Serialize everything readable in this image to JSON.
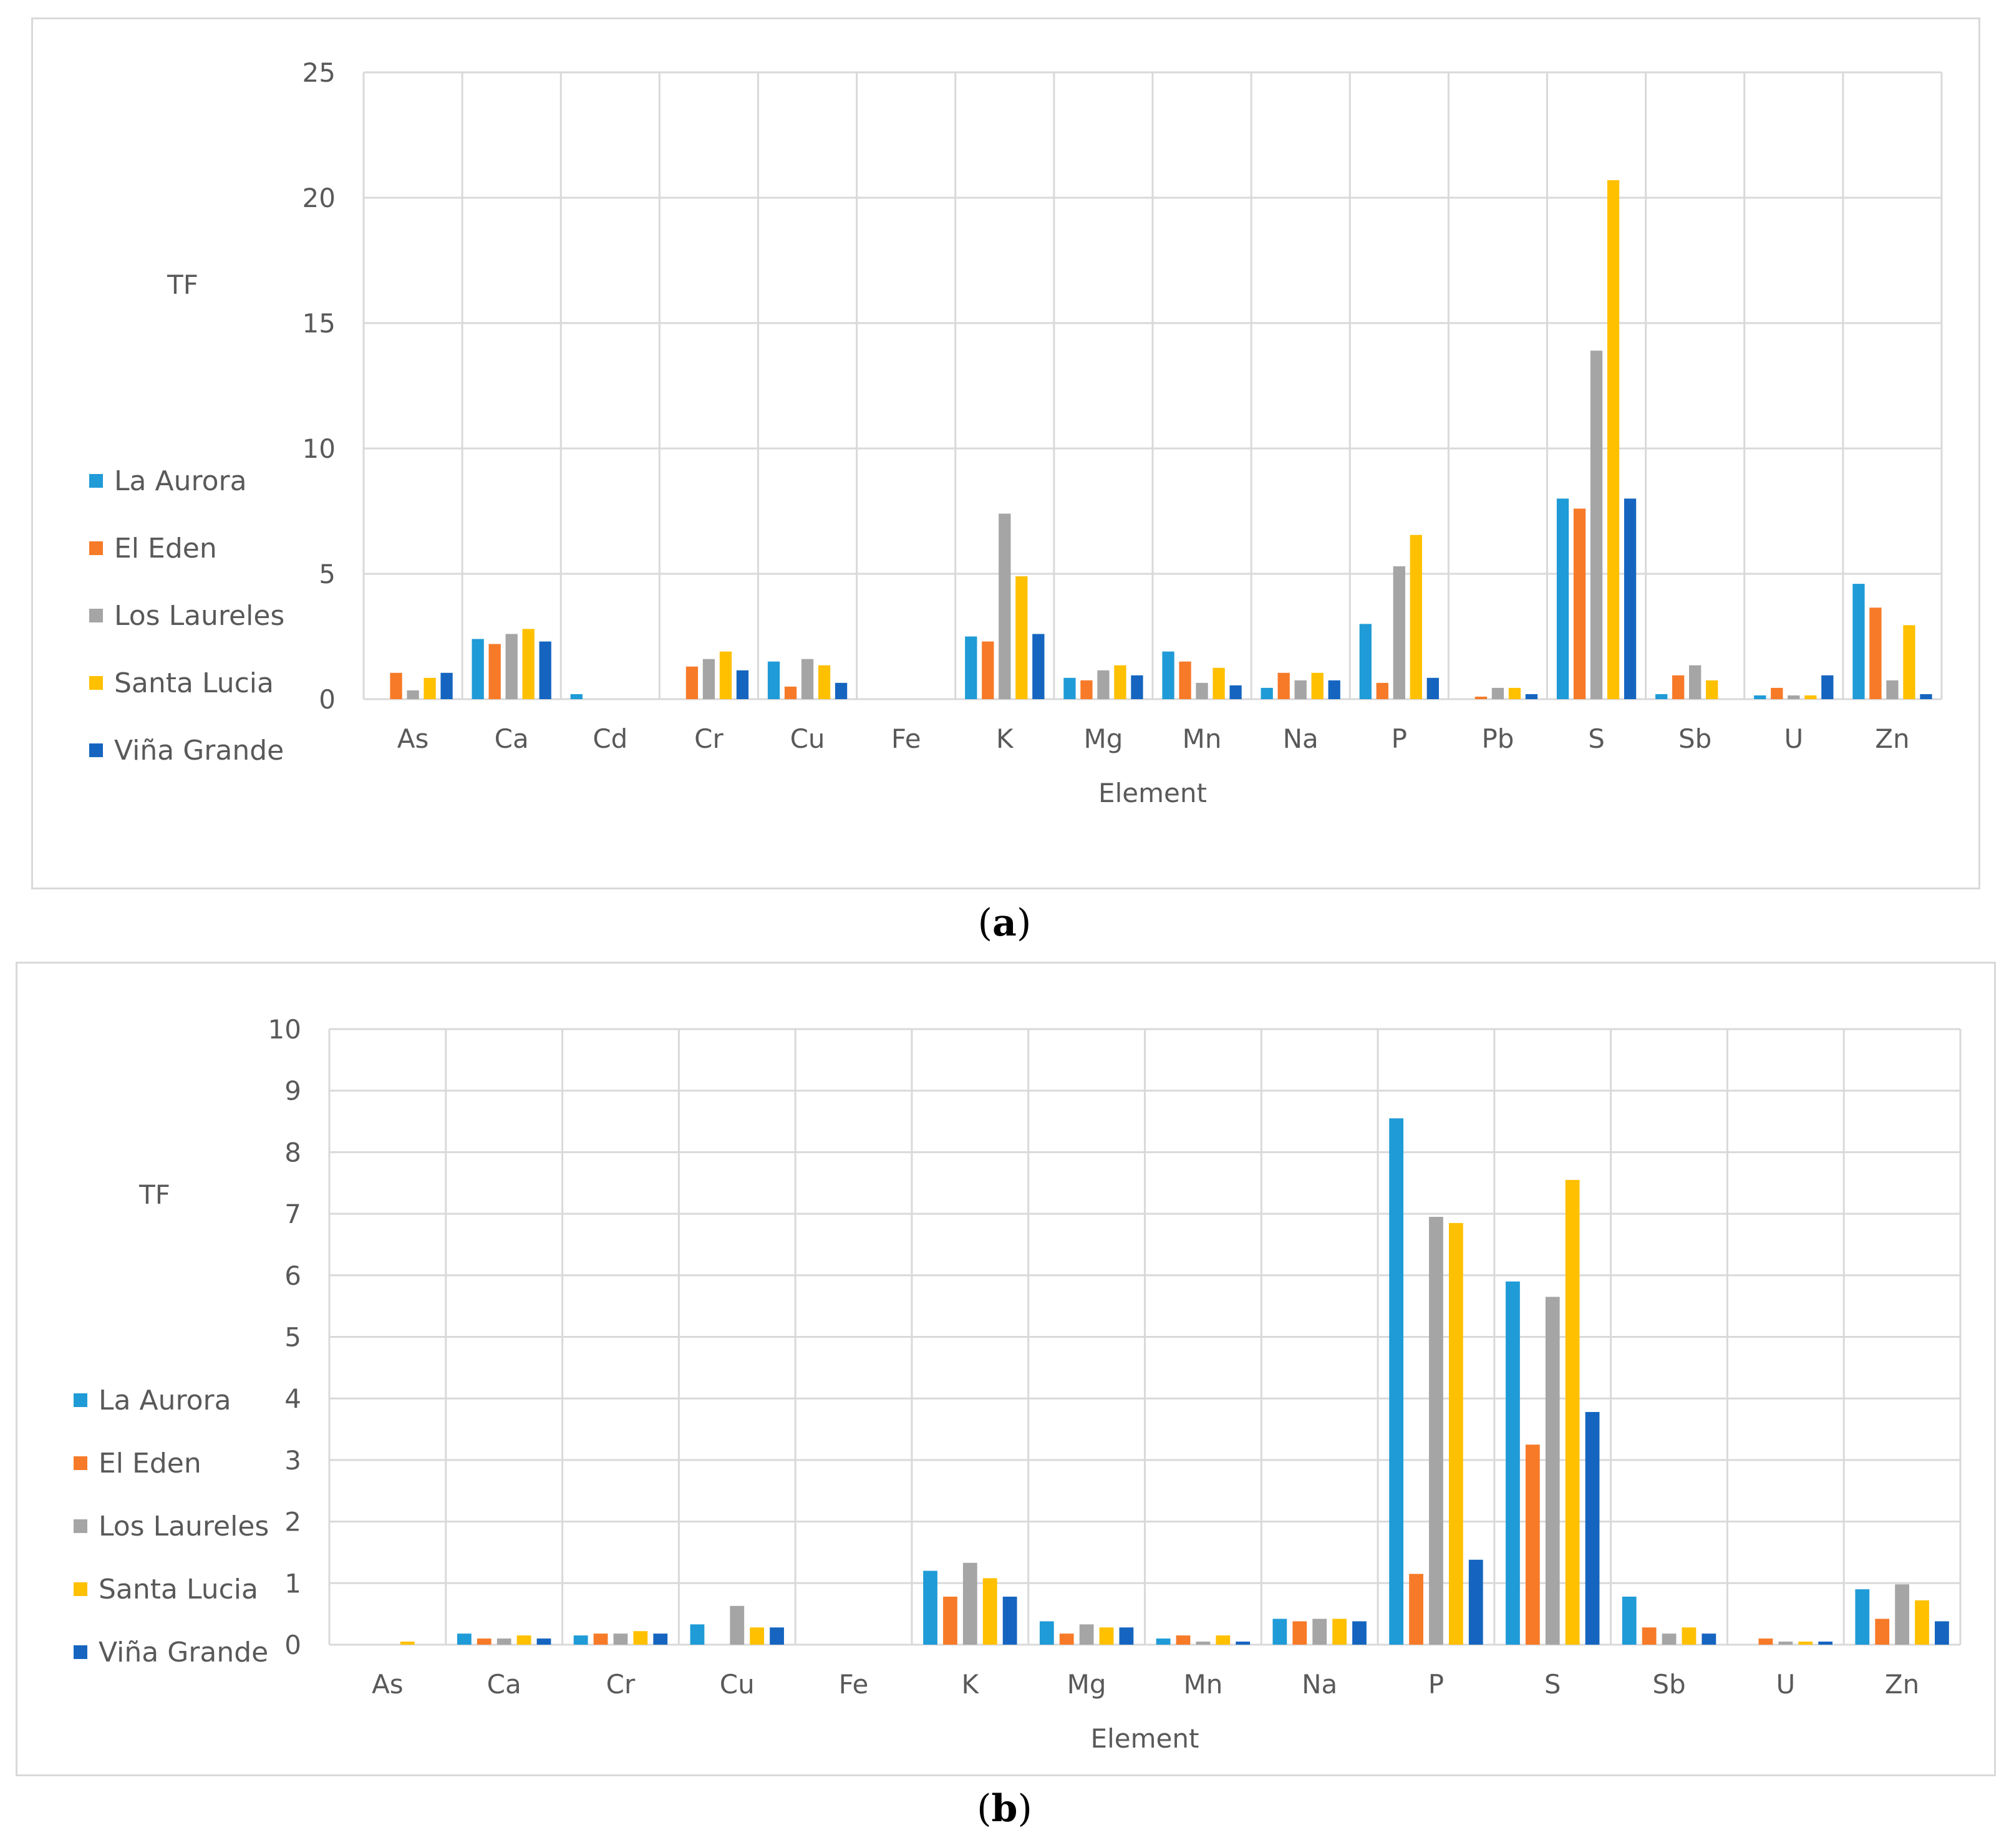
{
  "colors": {
    "La Aurora": "#1F9BD7",
    "El Eden": "#F77A28",
    "Los Laureles": "#A5A5A5",
    "Santa Lucia": "#FFC000",
    "Viña Grande": "#1565C0",
    "grid": "#d9d9d9",
    "text": "#595959"
  },
  "captions": {
    "a": "a",
    "b": "b"
  },
  "chart_data": [
    {
      "type": "bar",
      "panel": "a",
      "title": "",
      "xlabel": "Element",
      "ylabel": "TF",
      "ylim": [
        0,
        25
      ],
      "yticks": [
        0,
        5,
        10,
        15,
        20,
        25
      ],
      "grid": true,
      "legend_position": "left",
      "categories": [
        "As",
        "Ca",
        "Cd",
        "Cr",
        "Cu",
        "Fe",
        "K",
        "Mg",
        "Mn",
        "Na",
        "P",
        "Pb",
        "S",
        "Sb",
        "U",
        "Zn"
      ],
      "series": [
        {
          "name": "La Aurora",
          "values": [
            0,
            2.4,
            0.2,
            0,
            1.5,
            0,
            2.5,
            0.85,
            1.9,
            0.45,
            3.0,
            0,
            8.0,
            0.2,
            0.15,
            4.6
          ]
        },
        {
          "name": "El Eden",
          "values": [
            1.05,
            2.2,
            0,
            1.3,
            0.5,
            0,
            2.3,
            0.75,
            1.5,
            1.05,
            0.65,
            0.1,
            7.6,
            0.95,
            0.45,
            3.65
          ]
        },
        {
          "name": "Los Laureles",
          "values": [
            0.35,
            2.6,
            0,
            1.6,
            1.6,
            0,
            7.4,
            1.15,
            0.65,
            0.75,
            5.3,
            0.45,
            13.9,
            1.35,
            0.15,
            0.75
          ]
        },
        {
          "name": "Santa Lucia",
          "values": [
            0.85,
            2.8,
            0,
            1.9,
            1.35,
            0,
            4.9,
            1.35,
            1.25,
            1.05,
            6.55,
            0.45,
            20.7,
            0.75,
            0.15,
            2.95
          ]
        },
        {
          "name": "Viña Grande",
          "values": [
            1.05,
            2.3,
            0,
            1.15,
            0.65,
            0,
            2.6,
            0.95,
            0.55,
            0.75,
            0.85,
            0.2,
            8.0,
            0,
            0.95,
            0.2
          ]
        }
      ]
    },
    {
      "type": "bar",
      "panel": "b",
      "title": "",
      "xlabel": "Element",
      "ylabel": "TF",
      "ylim": [
        0,
        10
      ],
      "yticks": [
        0,
        1,
        2,
        3,
        4,
        5,
        6,
        7,
        8,
        9,
        10
      ],
      "grid": true,
      "legend_position": "left",
      "categories": [
        "As",
        "Ca",
        "Cr",
        "Cu",
        "Fe",
        "K",
        "Mg",
        "Mn",
        "Na",
        "P",
        "S",
        "Sb",
        "U",
        "Zn"
      ],
      "series": [
        {
          "name": "La Aurora",
          "values": [
            0,
            0.18,
            0.15,
            0.33,
            0,
            1.2,
            0.38,
            0.1,
            0.42,
            8.55,
            5.9,
            0.78,
            0,
            0.9
          ]
        },
        {
          "name": "El Eden",
          "values": [
            0,
            0.1,
            0.18,
            0,
            0,
            0.78,
            0.18,
            0.15,
            0.38,
            1.15,
            3.25,
            0.28,
            0.1,
            0.42
          ]
        },
        {
          "name": "Los Laureles",
          "values": [
            0,
            0.1,
            0.18,
            0.63,
            0,
            1.33,
            0.33,
            0.05,
            0.42,
            6.95,
            5.65,
            0.18,
            0.05,
            0.98
          ]
        },
        {
          "name": "Santa Lucia",
          "values": [
            0.05,
            0.15,
            0.22,
            0.28,
            0,
            1.08,
            0.28,
            0.15,
            0.42,
            6.85,
            7.55,
            0.28,
            0.05,
            0.72
          ]
        },
        {
          "name": "Viña Grande",
          "values": [
            0,
            0.1,
            0.18,
            0.28,
            0,
            0.78,
            0.28,
            0.05,
            0.38,
            1.38,
            3.78,
            0.18,
            0.05,
            0.38
          ]
        }
      ]
    }
  ]
}
